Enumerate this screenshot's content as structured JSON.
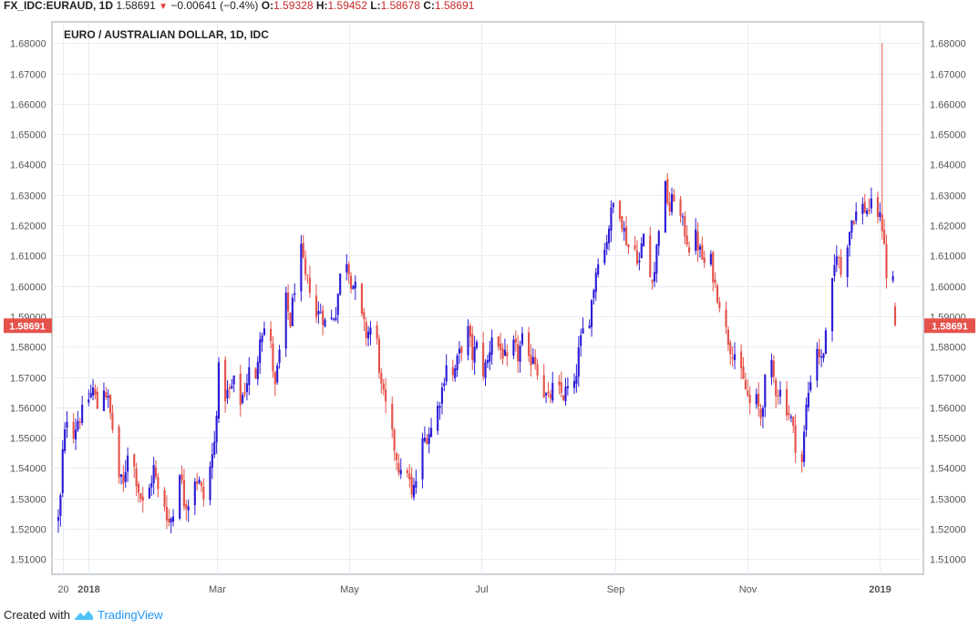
{
  "header": {
    "symbol": "FX_IDC:EURAUD, 1D",
    "last": "1.58691",
    "change": "−0.00641 (−0.4%)",
    "open_label": "O:",
    "open": "1.59328",
    "high_label": "H:",
    "high": "1.59452",
    "low_label": "L:",
    "low": "1.58678",
    "close_label": "C:",
    "close": "1.58691"
  },
  "footer": {
    "created_with": "Created with",
    "brand": "TradingView"
  },
  "colors": {
    "up": "#2b1bd6",
    "down": "#e5524a",
    "grid": "#e6edf3",
    "axis": "#555555",
    "price_tag": "#e5524a"
  },
  "chart_data": {
    "type": "candlestick",
    "title": "EURO / AUSTRALIAN DOLLAR, 1D, IDC",
    "last_price_label": "1.58691",
    "last_price": 1.58691,
    "ylim": [
      1.505,
      1.687
    ],
    "y_ticks": [
      1.51,
      1.52,
      1.53,
      1.54,
      1.55,
      1.56,
      1.57,
      1.58,
      1.59,
      1.6,
      1.61,
      1.62,
      1.63,
      1.64,
      1.65,
      1.66,
      1.67,
      1.68
    ],
    "y_tick_labels": [
      "1.51000",
      "1.52000",
      "1.53000",
      "1.54000",
      "1.55000",
      "1.56000",
      "1.57000",
      "1.58000",
      "1.59000",
      "1.60000",
      "1.61000",
      "1.62000",
      "1.63000",
      "1.64000",
      "1.65000",
      "1.66000",
      "1.67000",
      "1.68000"
    ],
    "x_range": [
      "2017-12-18",
      "2019-01-08"
    ],
    "x_ticks": [
      {
        "date": "2017-12-20",
        "label": "20"
      },
      {
        "date": "2018-01-01",
        "label": "2018"
      },
      {
        "date": "2018-03-01",
        "label": "Mar"
      },
      {
        "date": "2018-05-01",
        "label": "May"
      },
      {
        "date": "2018-07-01",
        "label": "Jul"
      },
      {
        "date": "2018-09-01",
        "label": "Sep"
      },
      {
        "date": "2018-11-01",
        "label": "Nov"
      },
      {
        "date": "2019-01-01",
        "label": "2019"
      }
    ],
    "close_path": [
      [
        "2017-12-18",
        1.523
      ],
      [
        "2017-12-19",
        1.53
      ],
      [
        "2017-12-20",
        1.545
      ],
      [
        "2017-12-22",
        1.557
      ],
      [
        "2017-12-25",
        1.552
      ],
      [
        "2017-12-27",
        1.556
      ],
      [
        "2017-12-29",
        1.558
      ],
      [
        "2018-01-01",
        1.563
      ],
      [
        "2018-01-03",
        1.566
      ],
      [
        "2018-01-05",
        1.56
      ],
      [
        "2018-01-08",
        1.567
      ],
      [
        "2018-01-10",
        1.562
      ],
      [
        "2018-01-12",
        1.553
      ],
      [
        "2018-01-15",
        1.537
      ],
      [
        "2018-01-17",
        1.534
      ],
      [
        "2018-01-19",
        1.546
      ],
      [
        "2018-01-22",
        1.54
      ],
      [
        "2018-01-24",
        1.533
      ],
      [
        "2018-01-26",
        1.528
      ],
      [
        "2018-01-29",
        1.533
      ],
      [
        "2018-01-31",
        1.54
      ],
      [
        "2018-02-02",
        1.532
      ],
      [
        "2018-02-05",
        1.528
      ],
      [
        "2018-02-07",
        1.522
      ],
      [
        "2018-02-09",
        1.525
      ],
      [
        "2018-02-12",
        1.54
      ],
      [
        "2018-02-14",
        1.529
      ],
      [
        "2018-02-16",
        1.529
      ],
      [
        "2018-02-19",
        1.537
      ],
      [
        "2018-02-21",
        1.535
      ],
      [
        "2018-02-23",
        1.53
      ],
      [
        "2018-02-26",
        1.54
      ],
      [
        "2018-02-28",
        1.548
      ],
      [
        "2018-03-02",
        1.572
      ],
      [
        "2018-03-05",
        1.564
      ],
      [
        "2018-03-07",
        1.565
      ],
      [
        "2018-03-09",
        1.568
      ],
      [
        "2018-03-12",
        1.562
      ],
      [
        "2018-03-14",
        1.566
      ],
      [
        "2018-03-16",
        1.572
      ],
      [
        "2018-03-19",
        1.568
      ],
      [
        "2018-03-21",
        1.585
      ],
      [
        "2018-03-23",
        1.586
      ],
      [
        "2018-03-26",
        1.58
      ],
      [
        "2018-03-28",
        1.566
      ],
      [
        "2018-03-30",
        1.578
      ],
      [
        "2018-04-02",
        1.595
      ],
      [
        "2018-04-04",
        1.588
      ],
      [
        "2018-04-06",
        1.6
      ],
      [
        "2018-04-09",
        1.611
      ],
      [
        "2018-04-11",
        1.602
      ],
      [
        "2018-04-13",
        1.6
      ],
      [
        "2018-04-16",
        1.59
      ],
      [
        "2018-04-18",
        1.592
      ],
      [
        "2018-04-20",
        1.588
      ],
      [
        "2018-04-23",
        1.589
      ],
      [
        "2018-04-25",
        1.592
      ],
      [
        "2018-04-27",
        1.603
      ],
      [
        "2018-04-30",
        1.609
      ],
      [
        "2018-05-02",
        1.602
      ],
      [
        "2018-05-04",
        1.599
      ],
      [
        "2018-05-07",
        1.589
      ],
      [
        "2018-05-09",
        1.584
      ],
      [
        "2018-05-11",
        1.586
      ],
      [
        "2018-05-14",
        1.581
      ],
      [
        "2018-05-16",
        1.566
      ],
      [
        "2018-05-18",
        1.56
      ],
      [
        "2018-05-21",
        1.55
      ],
      [
        "2018-05-23",
        1.544
      ],
      [
        "2018-05-25",
        1.537
      ],
      [
        "2018-05-28",
        1.54
      ],
      [
        "2018-05-30",
        1.53
      ],
      [
        "2018-06-01",
        1.536
      ],
      [
        "2018-06-04",
        1.548
      ],
      [
        "2018-06-06",
        1.551
      ],
      [
        "2018-06-08",
        1.553
      ],
      [
        "2018-06-11",
        1.56
      ],
      [
        "2018-06-13",
        1.566
      ],
      [
        "2018-06-15",
        1.575
      ],
      [
        "2018-06-18",
        1.57
      ],
      [
        "2018-06-20",
        1.575
      ],
      [
        "2018-06-22",
        1.58
      ],
      [
        "2018-06-25",
        1.585
      ],
      [
        "2018-06-27",
        1.577
      ],
      [
        "2018-06-29",
        1.58
      ],
      [
        "2018-07-02",
        1.572
      ],
      [
        "2018-07-04",
        1.575
      ],
      [
        "2018-07-06",
        1.584
      ],
      [
        "2018-07-09",
        1.58
      ],
      [
        "2018-07-11",
        1.578
      ],
      [
        "2018-07-13",
        1.574
      ],
      [
        "2018-07-16",
        1.58
      ],
      [
        "2018-07-18",
        1.577
      ],
      [
        "2018-07-20",
        1.582
      ],
      [
        "2018-07-23",
        1.574
      ],
      [
        "2018-07-25",
        1.578
      ],
      [
        "2018-07-27",
        1.573
      ],
      [
        "2018-07-30",
        1.565
      ],
      [
        "2018-08-01",
        1.562
      ],
      [
        "2018-08-03",
        1.566
      ],
      [
        "2018-08-06",
        1.565
      ],
      [
        "2018-08-08",
        1.564
      ],
      [
        "2018-08-10",
        1.566
      ],
      [
        "2018-08-13",
        1.566
      ],
      [
        "2018-08-15",
        1.578
      ],
      [
        "2018-08-17",
        1.585
      ],
      [
        "2018-08-20",
        1.59
      ],
      [
        "2018-08-22",
        1.6
      ],
      [
        "2018-08-24",
        1.61
      ],
      [
        "2018-08-27",
        1.612
      ],
      [
        "2018-08-29",
        1.62
      ],
      [
        "2018-08-31",
        1.627
      ],
      [
        "2018-09-03",
        1.625
      ],
      [
        "2018-09-05",
        1.618
      ],
      [
        "2018-09-07",
        1.613
      ],
      [
        "2018-09-10",
        1.612
      ],
      [
        "2018-09-12",
        1.608
      ],
      [
        "2018-09-14",
        1.617
      ],
      [
        "2018-09-17",
        1.603
      ],
      [
        "2018-09-19",
        1.605
      ],
      [
        "2018-09-21",
        1.62
      ],
      [
        "2018-09-24",
        1.632
      ],
      [
        "2018-09-26",
        1.625
      ],
      [
        "2018-09-28",
        1.63
      ],
      [
        "2018-10-01",
        1.622
      ],
      [
        "2018-10-03",
        1.618
      ],
      [
        "2018-10-05",
        1.613
      ],
      [
        "2018-10-08",
        1.616
      ],
      [
        "2018-10-10",
        1.611
      ],
      [
        "2018-10-12",
        1.607
      ],
      [
        "2018-10-15",
        1.608
      ],
      [
        "2018-10-17",
        1.6
      ],
      [
        "2018-10-19",
        1.595
      ],
      [
        "2018-10-22",
        1.585
      ],
      [
        "2018-10-24",
        1.58
      ],
      [
        "2018-10-26",
        1.578
      ],
      [
        "2018-10-29",
        1.57
      ],
      [
        "2018-10-31",
        1.566
      ],
      [
        "2018-11-02",
        1.561
      ],
      [
        "2018-11-05",
        1.562
      ],
      [
        "2018-11-07",
        1.557
      ],
      [
        "2018-11-09",
        1.568
      ],
      [
        "2018-11-12",
        1.573
      ],
      [
        "2018-11-14",
        1.566
      ],
      [
        "2018-11-16",
        1.565
      ],
      [
        "2018-11-19",
        1.56
      ],
      [
        "2018-11-21",
        1.556
      ],
      [
        "2018-11-23",
        1.548
      ],
      [
        "2018-11-26",
        1.542
      ],
      [
        "2018-11-28",
        1.56
      ],
      [
        "2018-11-30",
        1.57
      ],
      [
        "2018-12-03",
        1.58
      ],
      [
        "2018-12-05",
        1.575
      ],
      [
        "2018-12-07",
        1.583
      ],
      [
        "2018-12-10",
        1.6
      ],
      [
        "2018-12-12",
        1.612
      ],
      [
        "2018-12-14",
        1.604
      ],
      [
        "2018-12-17",
        1.615
      ],
      [
        "2018-12-19",
        1.622
      ],
      [
        "2018-12-21",
        1.624
      ],
      [
        "2018-12-24",
        1.626
      ],
      [
        "2018-12-26",
        1.625
      ],
      [
        "2018-12-28",
        1.626
      ],
      [
        "2018-12-31",
        1.624
      ],
      [
        "2019-01-02",
        1.62
      ],
      [
        "2019-01-03",
        1.615
      ],
      [
        "2019-01-04",
        1.602
      ],
      [
        "2019-01-07",
        1.603
      ],
      [
        "2019-01-08",
        1.5869
      ]
    ],
    "spike_high": {
      "date": "2019-01-02",
      "value": 1.68
    }
  }
}
